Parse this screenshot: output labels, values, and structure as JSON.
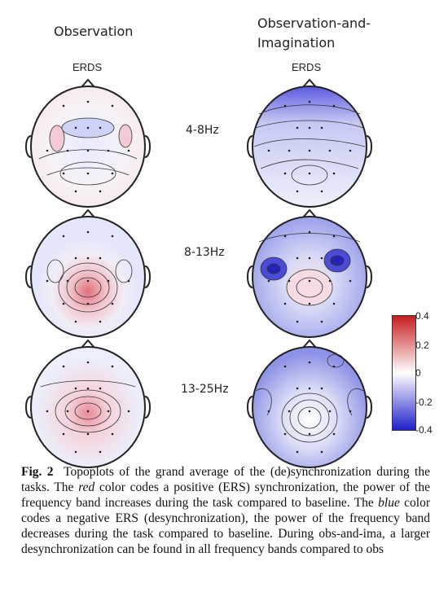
{
  "columns": {
    "left_title": "Observation",
    "right_title_line1": "Observation-and-",
    "right_title_line2": "Imagination",
    "erds_label": "ERDS"
  },
  "bands": [
    "4-8Hz",
    "8-13Hz",
    "13-25Hz"
  ],
  "colorbar": {
    "ticks": [
      "0.4",
      "0.2",
      "0",
      "-0.2",
      "-0.4"
    ],
    "colors": {
      "positive": "#c81e1e",
      "zero": "#ffffff",
      "negative": "#1f1fc8"
    }
  },
  "caption": {
    "label": "Fig. 2",
    "text_1": "Topoplots of the grand average of the (de)synchronization during the tasks. The ",
    "red": "red",
    "text_2": " color codes a positive (ERS) synchronization, the power of the frequency band increases during the task compared to baseline. The ",
    "blue": "blue",
    "text_3": " color codes a negative ERS (desynchronization), the power of the frequency band decreases during the task compared to baseline. During obs-and-ima, a larger desynchronization can be found in all frequency bands compared to obs"
  }
}
